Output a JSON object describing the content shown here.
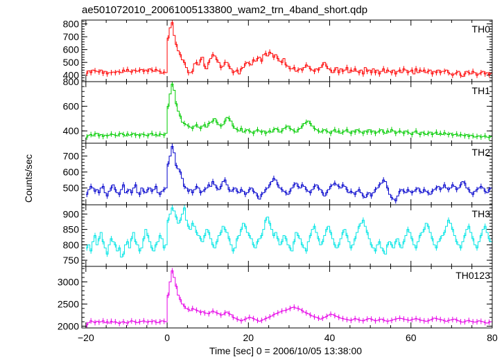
{
  "chart_data": {
    "type": "line",
    "style": "step-histogram-with-error-bars",
    "title": "ae501072010_20061005133800_wam2_trn_4band_short.qdp",
    "xlabel": "Time [sec] 0 = 2006/10/05 13:38:00",
    "ylabel": "Counts/sec",
    "xlim": [
      -21,
      80
    ],
    "x_ticks": [
      -20,
      0,
      20,
      40,
      60,
      80
    ],
    "x_tick_labels": [
      "−20",
      "0",
      "20",
      "40",
      "60",
      "80"
    ],
    "x_start": -20,
    "bin_width": 1,
    "panels": [
      {
        "name": "TH0",
        "color": "#ff0000",
        "ylim": [
          350,
          830
        ],
        "y_ticks": [
          400,
          500,
          600,
          700,
          800
        ],
        "y_tick_labels": [
          "400",
          "500",
          "600",
          "700",
          "800"
        ],
        "values": [
          415,
          435,
          420,
          440,
          435,
          430,
          425,
          440,
          415,
          430,
          410,
          420,
          420,
          425,
          420,
          430,
          425,
          420,
          440,
          430,
          445,
          430,
          425,
          440,
          435,
          430,
          440,
          445,
          430,
          440,
          430,
          450,
          440,
          430,
          445,
          435,
          430,
          415,
          425,
          420,
          690,
          770,
          810,
          710,
          640,
          590,
          560,
          520,
          500,
          460,
          420,
          420,
          430,
          490,
          500,
          480,
          520,
          540,
          470,
          450,
          500,
          530,
          560,
          550,
          520,
          500,
          460,
          470,
          500,
          500,
          470,
          450,
          420,
          430,
          440,
          410,
          450,
          460,
          490,
          500,
          490,
          480,
          520,
          510,
          530,
          540,
          510,
          560,
          570,
          550,
          580,
          570,
          540,
          560,
          530,
          510,
          500,
          530,
          480,
          470,
          450,
          450,
          460,
          430,
          440,
          450,
          440,
          460,
          480,
          470,
          450,
          440,
          430,
          450,
          440,
          460,
          480,
          500,
          470,
          450,
          440,
          420,
          440,
          460,
          420,
          450,
          430,
          440,
          460,
          420,
          440,
          430,
          450,
          430,
          420,
          440,
          410,
          460,
          430,
          440,
          420,
          450,
          420,
          440,
          410,
          430,
          450,
          420,
          440,
          430,
          420,
          440,
          410,
          430,
          440,
          420,
          450,
          440,
          420,
          430,
          440,
          410,
          450,
          420,
          440,
          430,
          440,
          420,
          430,
          440,
          410,
          430,
          420,
          440,
          420,
          430,
          430,
          440,
          420,
          410,
          400,
          410,
          420,
          430,
          400,
          390,
          410,
          430,
          420,
          410,
          430,
          420,
          400,
          410,
          420,
          430,
          410,
          420,
          405,
          415,
          420
        ]
      },
      {
        "name": "TH1",
        "color": "#00cc00",
        "ylim": [
          300,
          800
        ],
        "y_ticks": [
          400,
          600,
          800
        ],
        "y_tick_labels": [
          "400",
          "600",
          "800"
        ],
        "values": [
          350,
          365,
          370,
          360,
          375,
          380,
          360,
          370,
          355,
          365,
          360,
          365,
          375,
          370,
          365,
          360,
          375,
          380,
          370,
          360,
          375,
          365,
          370,
          380,
          365,
          370,
          360,
          375,
          370,
          365,
          360,
          375,
          380,
          365,
          370,
          360,
          375,
          370,
          365,
          380,
          600,
          700,
          780,
          730,
          620,
          560,
          520,
          470,
          460,
          450,
          440,
          430,
          420,
          440,
          450,
          430,
          420,
          440,
          450,
          430,
          460,
          470,
          480,
          500,
          470,
          450,
          440,
          450,
          480,
          510,
          500,
          480,
          440,
          420,
          410,
          400,
          420,
          390,
          400,
          410,
          400,
          390,
          380,
          400,
          410,
          400,
          390,
          400,
          380,
          390,
          400,
          390,
          410,
          420,
          410,
          390,
          400,
          420,
          430,
          440,
          420,
          410,
          400,
          390,
          410,
          420,
          440,
          460,
          470,
          480,
          460,
          440,
          420,
          410,
          400,
          390,
          400,
          410,
          400,
          390,
          380,
          400,
          410,
          390,
          400,
          380,
          390,
          400,
          410,
          390,
          380,
          400,
          390,
          410,
          400,
          390,
          380,
          400,
          390,
          410,
          390,
          400,
          380,
          390,
          400,
          410,
          390,
          380,
          400,
          390,
          410,
          400,
          380,
          390,
          400,
          390,
          380,
          400,
          390,
          380,
          370,
          390,
          400,
          380,
          370,
          390,
          380,
          370,
          380,
          390,
          370,
          380,
          390,
          370,
          380,
          370,
          385,
          375,
          370,
          380,
          365,
          370,
          375,
          360,
          370,
          365,
          360,
          370,
          355,
          365,
          360,
          350,
          355,
          360,
          350,
          355,
          360,
          350,
          345,
          355,
          360
        ]
      },
      {
        "name": "TH2",
        "color": "#0000cc",
        "ylim": [
          395,
          780
        ],
        "y_ticks": [
          500,
          600,
          700
        ],
        "y_tick_labels": [
          "500",
          "600",
          "700"
        ],
        "values": [
          460,
          490,
          510,
          500,
          480,
          490,
          470,
          500,
          510,
          470,
          450,
          480,
          500,
          520,
          490,
          470,
          460,
          490,
          520,
          470,
          480,
          490,
          470,
          500,
          520,
          470,
          460,
          500,
          480,
          470,
          490,
          500,
          480,
          490,
          510,
          470,
          460,
          480,
          490,
          500,
          650,
          700,
          760,
          720,
          640,
          620,
          600,
          560,
          510,
          500,
          480,
          490,
          470,
          490,
          510,
          500,
          470,
          480,
          490,
          500,
          520,
          510,
          540,
          520,
          500,
          490,
          510,
          540,
          550,
          520,
          490,
          480,
          490,
          500,
          480,
          470,
          490,
          480,
          460,
          470,
          490,
          500,
          480,
          470,
          450,
          430,
          460,
          470,
          490,
          500,
          520,
          540,
          560,
          550,
          520,
          500,
          490,
          480,
          470,
          460,
          480,
          500,
          520,
          530,
          510,
          500,
          520,
          510,
          490,
          480,
          470,
          490,
          510,
          520,
          500,
          490,
          470,
          450,
          470,
          490,
          510,
          520,
          530,
          520,
          510,
          500,
          520,
          510,
          490,
          470,
          480,
          470,
          460,
          480,
          490,
          470,
          450,
          440,
          460,
          470,
          450,
          470,
          490,
          500,
          520,
          530,
          550,
          540,
          500,
          460,
          440,
          430,
          420,
          450,
          480,
          490,
          480,
          470,
          490,
          480,
          470,
          480,
          490,
          500,
          480,
          470,
          490,
          480,
          470,
          460,
          480,
          490,
          500,
          510,
          490,
          500,
          520,
          500,
          490,
          500,
          520,
          510,
          490,
          500,
          520,
          540,
          530,
          500,
          490,
          470,
          460,
          480,
          490,
          500,
          510,
          500,
          480,
          470,
          490,
          500,
          510
        ]
      },
      {
        "name": "TH3",
        "color": "#00e5e5",
        "ylim": [
          730,
          930
        ],
        "y_ticks": [
          750,
          800,
          850,
          900
        ],
        "y_tick_labels": [
          "750",
          "800",
          "850",
          "900"
        ],
        "values": [
          790,
          800,
          780,
          810,
          830,
          800,
          820,
          840,
          810,
          790,
          770,
          800,
          820,
          810,
          800,
          780,
          790,
          760,
          770,
          800,
          810,
          790,
          820,
          840,
          810,
          800,
          780,
          790,
          820,
          850,
          830,
          810,
          790,
          780,
          800,
          810,
          830,
          820,
          790,
          800,
          880,
          900,
          920,
          910,
          890,
          870,
          880,
          900,
          920,
          880,
          860,
          850,
          870,
          860,
          840,
          830,
          820,
          810,
          830,
          850,
          840,
          820,
          800,
          790,
          810,
          830,
          840,
          860,
          850,
          840,
          820,
          800,
          780,
          790,
          820,
          830,
          850,
          870,
          860,
          840,
          830,
          820,
          800,
          790,
          810,
          820,
          830,
          850,
          880,
          890,
          870,
          850,
          830,
          840,
          820,
          800,
          810,
          830,
          820,
          800,
          790,
          780,
          810,
          840,
          830,
          820,
          800,
          790,
          780,
          810,
          830,
          850,
          860,
          840,
          820,
          800,
          810,
          830,
          850,
          860,
          840,
          820,
          800,
          790,
          800,
          820,
          840,
          850,
          830,
          810,
          790,
          800,
          820,
          840,
          860,
          870,
          880,
          860,
          840,
          820,
          800,
          790,
          780,
          800,
          810,
          790,
          780,
          770,
          800,
          810,
          800,
          790,
          810,
          820,
          800,
          790,
          810,
          830,
          850,
          840,
          820,
          800,
          790,
          810,
          830,
          840,
          850,
          870,
          860,
          840,
          820,
          800,
          790,
          810,
          820,
          830,
          840,
          860,
          880,
          870,
          850,
          830,
          810,
          800,
          790,
          810,
          830,
          850,
          860,
          840,
          820,
          800,
          790,
          810,
          830,
          850,
          860,
          840,
          820,
          810,
          800
        ]
      },
      {
        "name": "TH0123",
        "color": "#e600e6",
        "ylim": [
          1960,
          3350
        ],
        "y_ticks": [
          2000,
          2500,
          3000
        ],
        "y_tick_labels": [
          "2000",
          "2500",
          "3000"
        ],
        "values": [
          2030,
          2080,
          2120,
          2100,
          2080,
          2110,
          2090,
          2100,
          2120,
          2080,
          2100,
          2070,
          2110,
          2090,
          2100,
          2080,
          2060,
          2090,
          2100,
          2080,
          2070,
          2100,
          2120,
          2110,
          2090,
          2080,
          2100,
          2110,
          2120,
          2100,
          2090,
          2110,
          2100,
          2120,
          2090,
          2080,
          2100,
          2120,
          2110,
          2100,
          2700,
          3000,
          3250,
          3100,
          2900,
          2700,
          2600,
          2500,
          2450,
          2400,
          2380,
          2350,
          2400,
          2380,
          2360,
          2340,
          2310,
          2330,
          2300,
          2290,
          2280,
          2320,
          2340,
          2320,
          2300,
          2280,
          2250,
          2260,
          2300,
          2320,
          2280,
          2260,
          2200,
          2180,
          2160,
          2140,
          2120,
          2140,
          2160,
          2180,
          2200,
          2190,
          2170,
          2150,
          2130,
          2110,
          2130,
          2150,
          2170,
          2190,
          2210,
          2230,
          2260,
          2280,
          2300,
          2320,
          2340,
          2350,
          2360,
          2380,
          2400,
          2420,
          2430,
          2410,
          2400,
          2380,
          2350,
          2320,
          2300,
          2280,
          2250,
          2230,
          2210,
          2200,
          2180,
          2160,
          2180,
          2200,
          2220,
          2250,
          2270,
          2260,
          2240,
          2220,
          2200,
          2180,
          2170,
          2160,
          2150,
          2140,
          2130,
          2150,
          2170,
          2160,
          2140,
          2130,
          2120,
          2140,
          2160,
          2170,
          2160,
          2140,
          2120,
          2130,
          2150,
          2160,
          2140,
          2120,
          2110,
          2120,
          2130,
          2150,
          2160,
          2170,
          2180,
          2170,
          2160,
          2150,
          2140,
          2130,
          2150,
          2160,
          2170,
          2160,
          2140,
          2130,
          2120,
          2110,
          2120,
          2140,
          2160,
          2180,
          2170,
          2160,
          2150,
          2140,
          2120,
          2110,
          2130,
          2140,
          2150,
          2160,
          2140,
          2120,
          2100,
          2090,
          2100,
          2120,
          2130,
          2110,
          2100,
          2090,
          2100,
          2120,
          2110,
          2100,
          2080,
          2070,
          2090,
          2100,
          2110,
          2100,
          2080,
          2070,
          2090,
          2100
        ]
      }
    ]
  }
}
